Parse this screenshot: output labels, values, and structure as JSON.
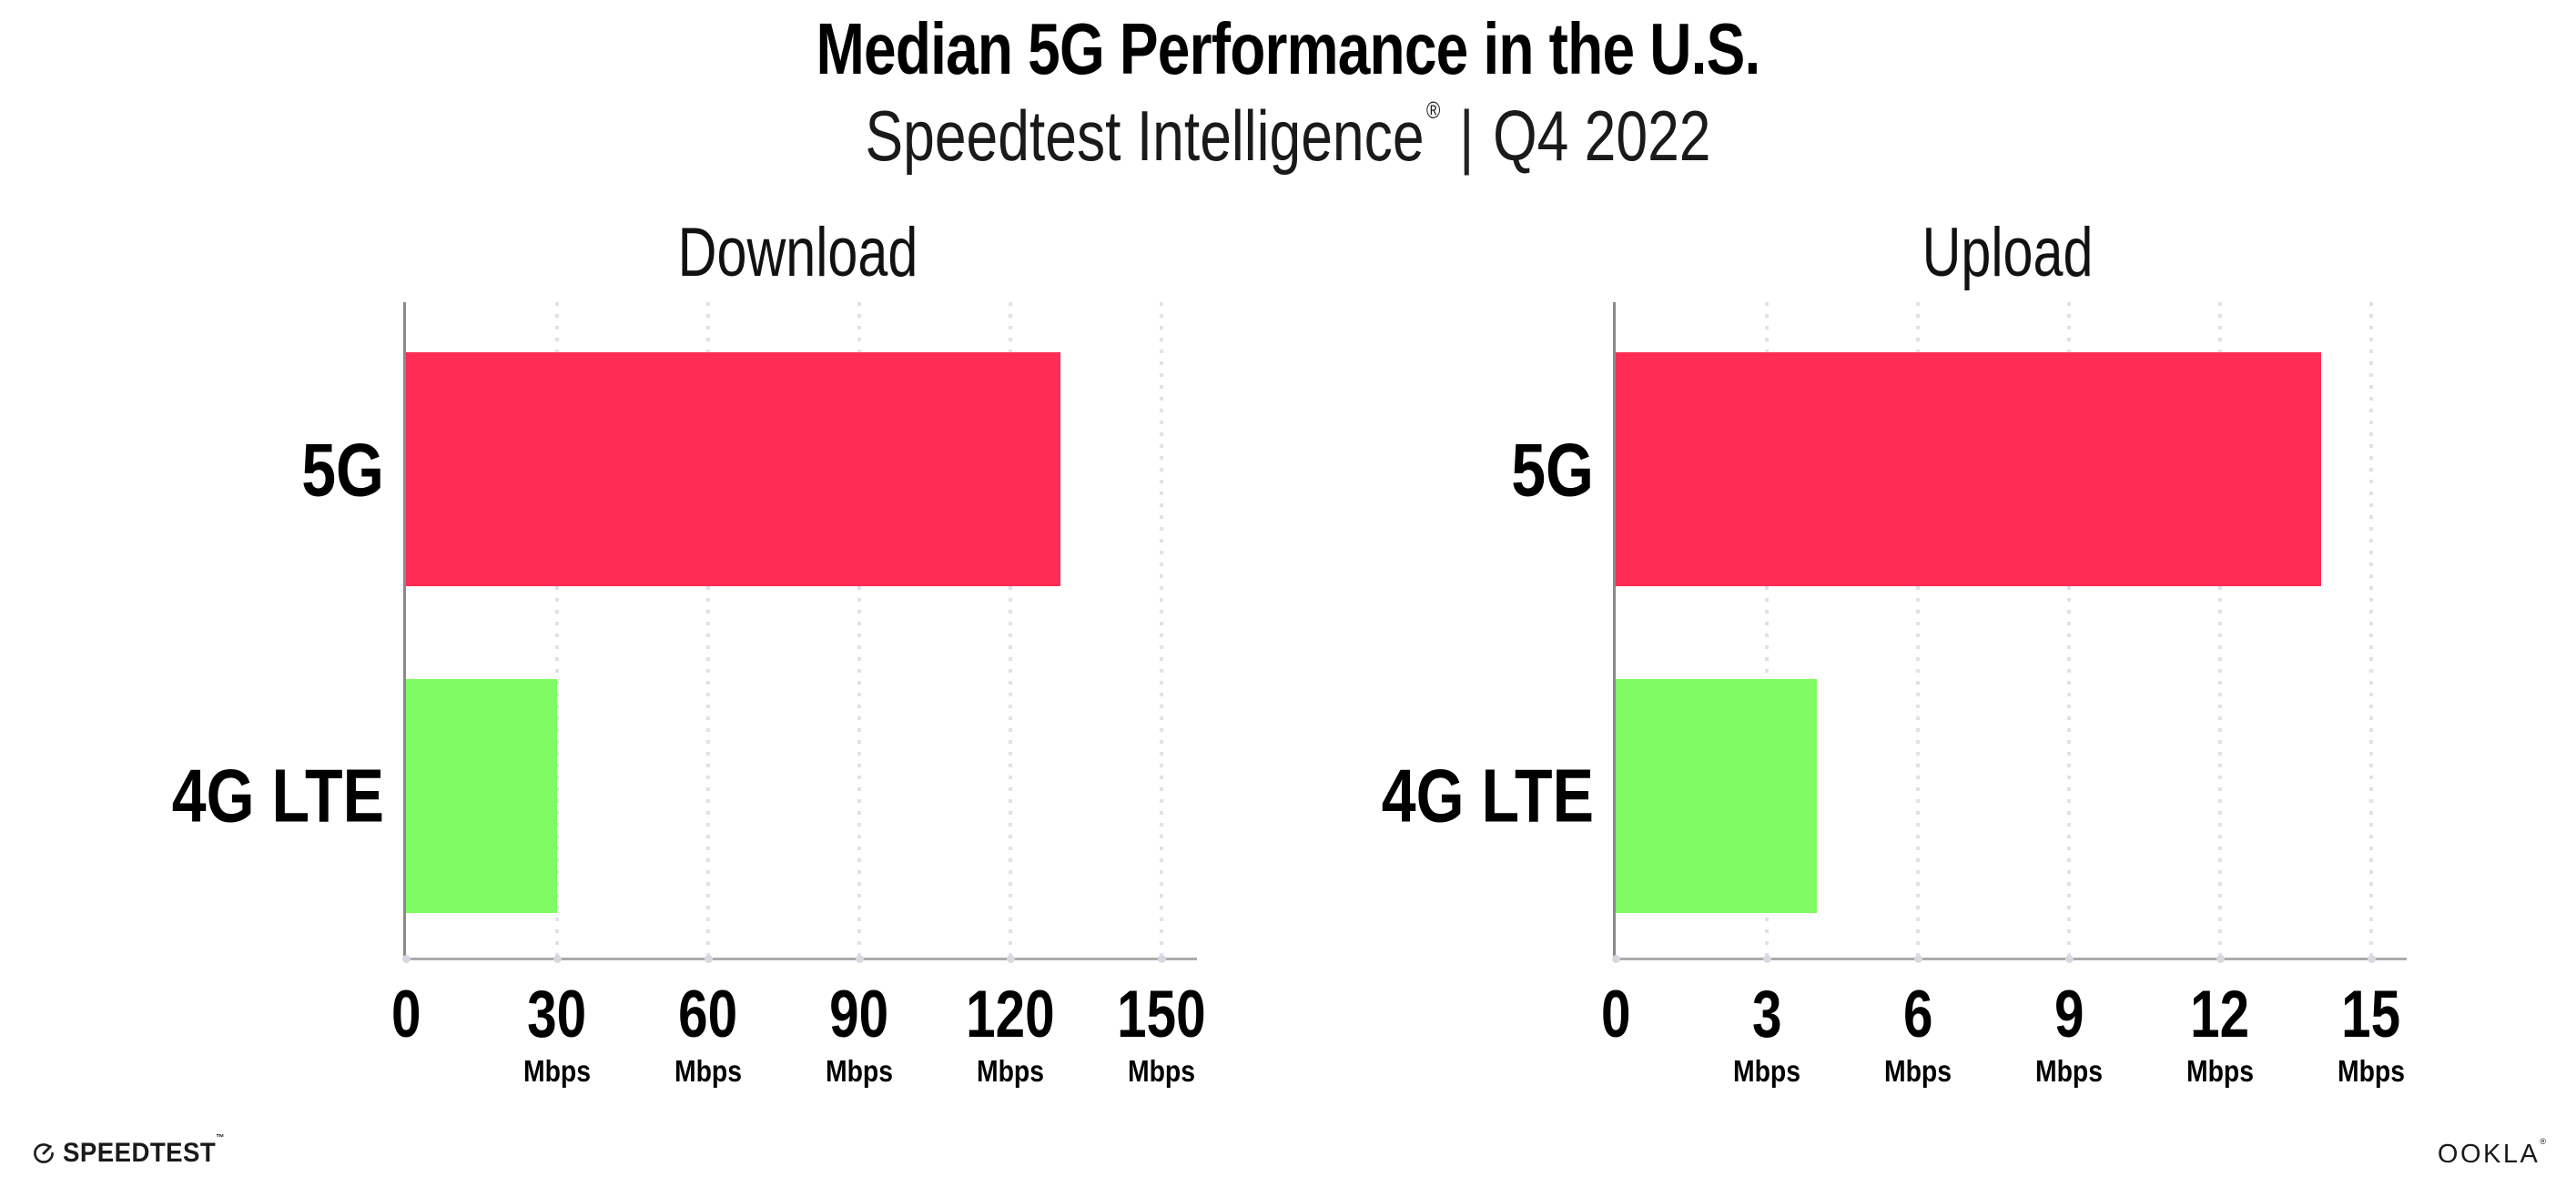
{
  "header": {
    "title": "Median 5G Performance in the U.S.",
    "subtitle_brand": "Speedtest Intelligence",
    "subtitle_reg": "®",
    "subtitle_sep": "|",
    "subtitle_period": "Q4 2022"
  },
  "colors": {
    "bar_5g": "#ff2d55",
    "bar_4g_lte": "#7ffc63",
    "gridline": "#e1e1ec",
    "axis": "#8a8a8a",
    "background": "#ffffff"
  },
  "chart_data": [
    {
      "type": "bar",
      "orientation": "horizontal",
      "title": "Download",
      "categories": [
        "5G",
        "4G LTE"
      ],
      "values": [
        130,
        30
      ],
      "unit": "Mbps",
      "xlim": [
        0,
        150
      ],
      "xticks": [
        0,
        30,
        60,
        90,
        120,
        150
      ],
      "grid": "vertical-dotted",
      "legend": "none",
      "bar_colors": [
        "#ff2d55",
        "#7ffc63"
      ]
    },
    {
      "type": "bar",
      "orientation": "horizontal",
      "title": "Upload",
      "categories": [
        "5G",
        "4G LTE"
      ],
      "values": [
        14,
        4
      ],
      "unit": "Mbps",
      "xlim": [
        0,
        15
      ],
      "xticks": [
        0,
        3,
        6,
        9,
        12,
        15
      ],
      "grid": "vertical-dotted",
      "legend": "none",
      "bar_colors": [
        "#ff2d55",
        "#7ffc63"
      ]
    }
  ],
  "footer": {
    "speedtest_label": "SPEEDTEST",
    "speedtest_tm": "™",
    "ookla_label": "OOKLA",
    "ookla_reg": "®"
  }
}
